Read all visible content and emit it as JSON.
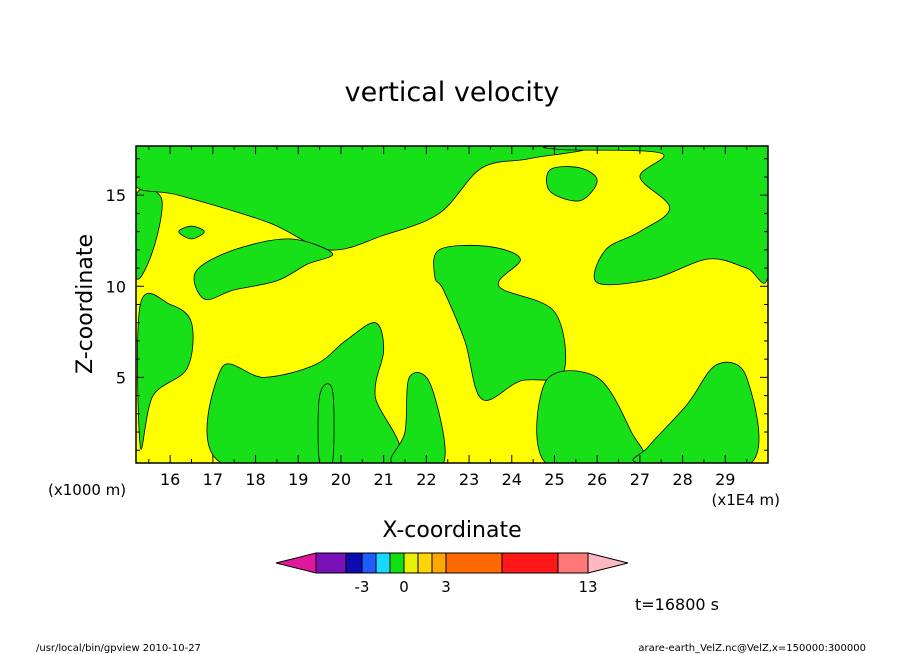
{
  "chart_data": {
    "type": "heatmap",
    "title": "vertical velocity",
    "xlabel": "X-coordinate",
    "ylabel": "Z-coordinate",
    "x_unit_left": "(x1000 m)",
    "x_unit_right": "(x1E4 m)",
    "xlim": [
      15.2,
      30.0
    ],
    "ylim": [
      0.3,
      17.7
    ],
    "x_ticks": [
      16,
      17,
      18,
      19,
      20,
      21,
      22,
      23,
      24,
      25,
      26,
      27,
      28,
      29
    ],
    "y_ticks": [
      5,
      10,
      15
    ],
    "time_label": "t=16800 s",
    "colorbar": {
      "colors": [
        "#e0189e",
        "#7a10b8",
        "#0c0cb0",
        "#1e5cff",
        "#18d8ff",
        "#10e010",
        "#e8f000",
        "#ffd400",
        "#ffa800",
        "#ff6a00",
        "#ff1818",
        "#ff7878",
        "#ffb8c0"
      ],
      "tick_labels": [
        "-3",
        "0",
        "3",
        "13"
      ],
      "tick_values": [
        -3,
        0,
        3,
        13
      ]
    },
    "field_colors": {
      "negative": "#18e018",
      "positive": "#ffff00"
    },
    "regions": [
      {
        "sign": "negative",
        "points": [
          [
            15.3,
            1.2
          ],
          [
            15.6,
            4
          ],
          [
            16.4,
            5.5
          ],
          [
            16.5,
            8
          ],
          [
            16.0,
            9
          ],
          [
            15.3,
            9
          ]
        ]
      },
      {
        "sign": "negative",
        "points": [
          [
            15.2,
            10.5
          ],
          [
            15.6,
            12
          ],
          [
            15.8,
            14.8
          ],
          [
            15.2,
            15
          ]
        ]
      },
      {
        "sign": "negative",
        "points": [
          [
            15.2,
            15.5
          ],
          [
            16.2,
            15
          ],
          [
            18.3,
            13.5
          ],
          [
            19.7,
            12
          ],
          [
            21.0,
            12.8
          ],
          [
            22.3,
            14.0
          ],
          [
            23.3,
            16.5
          ],
          [
            24.4,
            17.0
          ],
          [
            25.2,
            17.7
          ],
          [
            15.2,
            17.7
          ]
        ]
      },
      {
        "sign": "negative",
        "points": [
          [
            16.2,
            13
          ],
          [
            16.5,
            12.6
          ],
          [
            16.8,
            13
          ],
          [
            16.5,
            13.3
          ]
        ]
      },
      {
        "sign": "negative",
        "points": [
          [
            16.8,
            9.3
          ],
          [
            17.5,
            9.8
          ],
          [
            18.5,
            10.3
          ],
          [
            19.2,
            11.2
          ],
          [
            19.8,
            11.8
          ],
          [
            18.8,
            12.6
          ],
          [
            17.5,
            12.0
          ],
          [
            16.6,
            10.8
          ]
        ]
      },
      {
        "sign": "negative",
        "points": [
          [
            17.2,
            5.5
          ],
          [
            18.2,
            5
          ],
          [
            19.4,
            5.7
          ],
          [
            20.1,
            7
          ],
          [
            20.8,
            8
          ],
          [
            21.0,
            6.5
          ],
          [
            20.8,
            4.0
          ],
          [
            21.2,
            0.3
          ],
          [
            17.2,
            0.3
          ]
        ]
      },
      {
        "sign": "negative",
        "points": [
          [
            19.5,
            4.0
          ],
          [
            19.8,
            4.3
          ],
          [
            19.8,
            0.3
          ],
          [
            19.5,
            0.3
          ]
        ]
      },
      {
        "sign": "negative",
        "points": [
          [
            21.6,
            5.0
          ],
          [
            22.1,
            4.6
          ],
          [
            22.4,
            0.3
          ],
          [
            21.2,
            0.3
          ],
          [
            21.5,
            2.0
          ]
        ]
      },
      {
        "sign": "negative",
        "points": [
          [
            22.2,
            10.5
          ],
          [
            22.3,
            12.0
          ],
          [
            23.4,
            12.2
          ],
          [
            24.2,
            11.5
          ],
          [
            23.7,
            10.0
          ],
          [
            25.0,
            8.6
          ],
          [
            25.2,
            5.2
          ],
          [
            24.2,
            4.8
          ],
          [
            23.3,
            3.8
          ],
          [
            22.9,
            7.0
          ],
          [
            22.4,
            9.8
          ]
        ]
      },
      {
        "sign": "negative",
        "points": [
          [
            24.8,
            4.8
          ],
          [
            26.0,
            5.0
          ],
          [
            26.8,
            2.0
          ],
          [
            27.0,
            0.3
          ],
          [
            24.8,
            0.3
          ]
        ]
      },
      {
        "sign": "negative",
        "points": [
          [
            24.9,
            15.2
          ],
          [
            24.9,
            16.4
          ],
          [
            25.6,
            16.5
          ],
          [
            26.0,
            15.8
          ],
          [
            25.6,
            14.7
          ]
        ]
      },
      {
        "sign": "negative",
        "points": [
          [
            25.2,
            17.5
          ],
          [
            27.5,
            17.3
          ],
          [
            27.0,
            16.0
          ],
          [
            27.7,
            14.3
          ],
          [
            27.0,
            13.0
          ],
          [
            26.2,
            12.0
          ],
          [
            26.0,
            10.2
          ],
          [
            27.3,
            10.4
          ],
          [
            28.6,
            11.5
          ],
          [
            29.5,
            11.0
          ],
          [
            30.0,
            10.6
          ],
          [
            30.0,
            17.7
          ],
          [
            25.2,
            17.7
          ]
        ]
      },
      {
        "sign": "negative",
        "points": [
          [
            27.2,
            1.2
          ],
          [
            28.1,
            3.5
          ],
          [
            28.8,
            5.7
          ],
          [
            29.5,
            5.0
          ],
          [
            29.6,
            0.3
          ],
          [
            27.0,
            0.3
          ]
        ]
      }
    ]
  },
  "footer": {
    "left": "/usr/local/bin/gpview   2010-10-27",
    "right": "arare-earth_VelZ.nc@VelZ,x=150000:300000"
  }
}
